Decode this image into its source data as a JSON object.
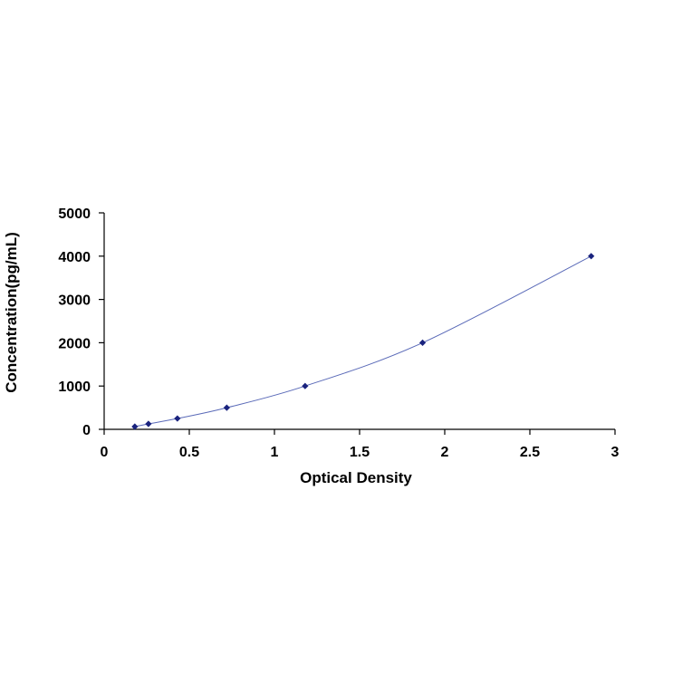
{
  "chart_data": {
    "type": "scatter",
    "title": "",
    "xlabel": "Optical Density",
    "ylabel": "Concentration(pg/mL)",
    "xlim": [
      0,
      3
    ],
    "ylim": [
      0,
      5000
    ],
    "x_ticks": [
      0,
      0.5,
      1,
      1.5,
      2,
      2.5,
      3
    ],
    "x_tick_labels": [
      "0",
      "0.5",
      "1",
      "1.5",
      "2",
      "2.5",
      "3"
    ],
    "y_ticks": [
      0,
      1000,
      2000,
      3000,
      4000,
      5000
    ],
    "y_tick_labels": [
      "0",
      "1000",
      "2000",
      "3000",
      "4000",
      "5000"
    ],
    "grid": false,
    "legend": "none",
    "series": [
      {
        "points": [
          {
            "x": 0.18,
            "y": 62.5
          },
          {
            "x": 0.26,
            "y": 125
          },
          {
            "x": 0.43,
            "y": 250
          },
          {
            "x": 0.72,
            "y": 500
          },
          {
            "x": 1.18,
            "y": 1000
          },
          {
            "x": 1.87,
            "y": 2000
          },
          {
            "x": 2.86,
            "y": 4000
          }
        ],
        "trendline": "smooth",
        "marker_color": "#1a237e",
        "line_color": "#5a6ab8"
      }
    ]
  }
}
